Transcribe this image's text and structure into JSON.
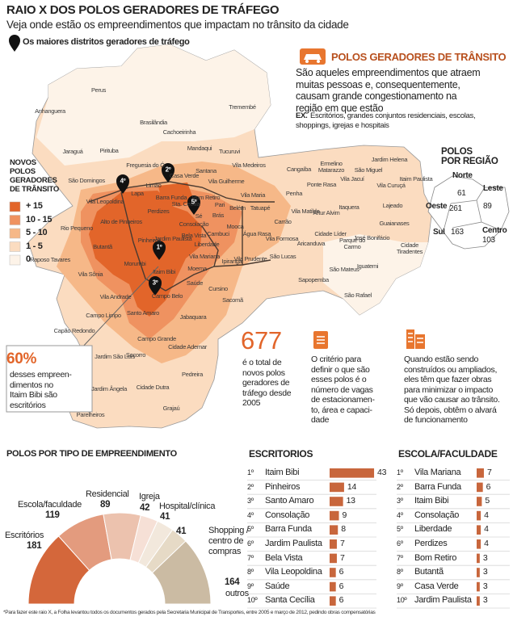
{
  "header": {
    "title": "RAIO X DOS POLOS GERADORES DE TRÁFEGO",
    "subtitle": "Veja onde estão os empreendimentos que impactam no trânsito da cidade",
    "pin_legend": "Os maiores distritos geradores de tráfego"
  },
  "map": {
    "legend": {
      "title_lines": [
        "NOVOS",
        "POLOS",
        "GERADORES",
        "DE TRÂNSITO"
      ],
      "items": [
        {
          "label": "+ 15",
          "color": "#e2652a"
        },
        {
          "label": "10 - 15",
          "color": "#ef9260"
        },
        {
          "label": "5 - 10",
          "color": "#f6b888"
        },
        {
          "label": "1 - 5",
          "color": "#fbdcc0"
        },
        {
          "label": "0",
          "color": "#fdf3e8"
        }
      ]
    },
    "districts": [
      "Perus",
      "Anhanguera",
      "Jaraguá",
      "Pirituba",
      "Brasilândia",
      "Cachoeirinha",
      "Tremembé",
      "Mandaqui",
      "Tucuruvi",
      "Freguesia do Ó",
      "Limão",
      "Casa Verde",
      "Santana",
      "Vila Medeiros",
      "Vila Guilherme",
      "Vila Maria",
      "São Domingos",
      "Lapa",
      "Barra Funda",
      "Bom Retiro",
      "Sta. Cecília",
      "Pari",
      "Sé",
      "Brás",
      "Belém",
      "Tatuapé",
      "Penha",
      "Vila Leopoldina",
      "Alto de Pinheiros",
      "Perdizes",
      "Consolação",
      "Bela Vista",
      "Jardim Paulista",
      "Liberdade",
      "Cambuci",
      "Mooca",
      "Água Rasa",
      "Carrão",
      "Vila Formosa",
      "Aricanduva",
      "Vila Matilde",
      "Artur Alvim",
      "Cangaíba",
      "Ermelino Matarazzo",
      "Ponte Rasa",
      "Vila Jacuí",
      "São Miguel",
      "Jardim Helena",
      "Itaim Paulista",
      "Vila Curuçá",
      "Lajeado",
      "Guaianases",
      "Itaquera",
      "Cidade Líder",
      "Parque do Carmo",
      "José Bonifácio",
      "Cidade Tiradentes",
      "Iguatemi",
      "São Rafael",
      "São Mateus",
      "Sapopemba",
      "São Lucas",
      "Vila Prudente",
      "Ipiranga",
      "Sacomã",
      "Cursino",
      "Jabaquara",
      "Saúde",
      "Moema",
      "Vila Mariana",
      "Itaim Bibi",
      "Pinheiros",
      "Butantã",
      "Rio Pequeno",
      "Raposo Tavares",
      "Morumbi",
      "Vila Sônia",
      "Campo Belo",
      "Santo Amaro",
      "Vila Andrade",
      "Campo Limpo",
      "Capão Redondo",
      "Campo Grande",
      "Cidade Ademar",
      "Socorro",
      "Jardim São Luís",
      "Pedreira",
      "Jardim Ângela",
      "Cidade Dutra",
      "Grajaú",
      "Parelheiros"
    ],
    "pins": [
      "1º",
      "2º",
      "3º",
      "4º",
      "5º"
    ]
  },
  "info_box": {
    "title": "POLOS GERADORES DE TRÂNSITO",
    "lines": [
      "São aqueles empreendimentos que atraem",
      "muitas pessoas e, consequentemente,",
      "causam grande congestionamento na",
      "região em que estão"
    ],
    "example_label": "EX.",
    "example_lines": [
      "Escritórios, grandes conjuntos residenciais, escolas,",
      "shoppings, igrejas e hospitais"
    ]
  },
  "regions": {
    "title_lines": [
      "POLOS",
      "POR REGIÃO"
    ],
    "items": [
      {
        "name": "Norte",
        "value": 61
      },
      {
        "name": "Leste",
        "value": 89
      },
      {
        "name": "Oeste",
        "value": 261
      },
      {
        "name": "Centro",
        "value": 103
      },
      {
        "name": "Sul",
        "value": 163
      }
    ]
  },
  "callout": {
    "value": "60%",
    "lines": [
      "desses empreen-",
      "dimentos no",
      "Itaim Bibi são",
      "escritórios"
    ]
  },
  "facts": [
    {
      "value": 677,
      "lines": [
        "é o total de",
        "novos polos",
        "geradores de",
        "tráfego desde",
        "2005"
      ]
    },
    {
      "lines": [
        "O critério para",
        "definir o que são",
        "esses polos é o",
        "número de vagas",
        "de estacionamen-",
        "to, área e capaci-",
        "dade"
      ]
    },
    {
      "lines": [
        "Quando estão sendo",
        "construídos ou ampliados,",
        "eles têm que fazer obras",
        "para minimizar o impacto",
        "que vão causar ao trânsito.",
        "Só depois, obtêm o alvará",
        "de funcionamento"
      ]
    }
  ],
  "chart_data": [
    {
      "type": "pie",
      "title": "POLOS POR TIPO DE EMPREENDIMENTO",
      "categories": [
        "Escritórios",
        "Escola/faculdade",
        "Residencial",
        "Igreja",
        "Hospital/clínica",
        "Shopping / centro de compras",
        "outros"
      ],
      "values": [
        181,
        119,
        89,
        42,
        41,
        41,
        164
      ],
      "colors": [
        "#d4673b",
        "#e39b7e",
        "#ecc2ae",
        "#f6e0d6",
        "#f2e8dc",
        "#e6dac6",
        "#cbbba3"
      ]
    },
    {
      "type": "bar",
      "title": "ESCRITORIOS",
      "ranks": [
        "1º",
        "2º",
        "3º",
        "4º",
        "5º",
        "6º",
        "7º",
        "8º",
        "9º",
        "10º"
      ],
      "categories": [
        "Itaim Bibi",
        "Pinheiros",
        "Santo Amaro",
        "Consolação",
        "Barra Funda",
        "Jardim Paulista",
        "Bela Vista",
        "Vila Leopoldina",
        "Saúde",
        "Santa Cecília"
      ],
      "values": [
        43,
        14,
        13,
        9,
        8,
        7,
        7,
        6,
        6,
        6
      ],
      "color": "#c8663c"
    },
    {
      "type": "bar",
      "title": "ESCOLA/FACULDADE",
      "ranks": [
        "1º",
        "2º",
        "3º",
        "4º",
        "5º",
        "6º",
        "7º",
        "8º",
        "9º",
        "10º"
      ],
      "categories": [
        "Vila Mariana",
        "Barra Funda",
        "Itaim Bibi",
        "Consolação",
        "Liberdade",
        "Perdizes",
        "Bom Retiro",
        "Butantã",
        "Casa Verde",
        "Jardim Paulista"
      ],
      "values": [
        7,
        6,
        5,
        4,
        4,
        4,
        3,
        3,
        3,
        3
      ],
      "color": "#c8663c"
    }
  ],
  "footnote": "*Para fazer este raio X, a Folha levantou todos os documentos gerados pela Secretaria Municipal de Transportes, entre 2005 e março de 2012, pedindo obras compensatórias"
}
